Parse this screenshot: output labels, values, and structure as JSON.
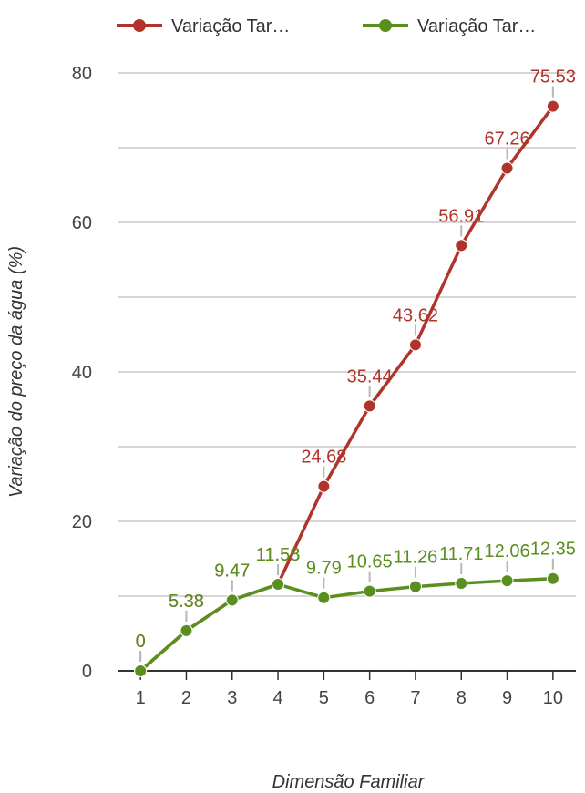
{
  "chart_data": {
    "type": "line",
    "categories": [
      "1",
      "2",
      "3",
      "4",
      "5",
      "6",
      "7",
      "8",
      "9",
      "10"
    ],
    "series": [
      {
        "name": "Variação Tar…",
        "color": "#b0342b",
        "values": [
          0,
          5.38,
          9.47,
          11.58,
          24.68,
          35.44,
          43.62,
          56.91,
          67.26,
          75.53
        ],
        "labels": [
          "0",
          "5.38",
          "9.47",
          "11.58",
          "24.68",
          "35.44",
          "43.62",
          "56.91",
          "67.26",
          "75.53"
        ]
      },
      {
        "name": "Variação Tar…",
        "color": "#5a8f1f",
        "values": [
          0,
          5.38,
          9.47,
          11.58,
          9.79,
          10.65,
          11.26,
          11.71,
          12.06,
          12.35
        ],
        "labels": [
          "0",
          "5.38",
          "9.47",
          "11.58",
          "9.79",
          "10.65",
          "11.26",
          "11.71",
          "12.06",
          "12.35"
        ]
      }
    ],
    "title": "",
    "xlabel": "Dimensão Familiar",
    "ylabel": "Variação do preço da água (%)",
    "ylim": [
      0,
      80
    ],
    "yticks": [
      "0",
      "20",
      "40",
      "60",
      "80"
    ],
    "grid": true,
    "legend": "top"
  }
}
